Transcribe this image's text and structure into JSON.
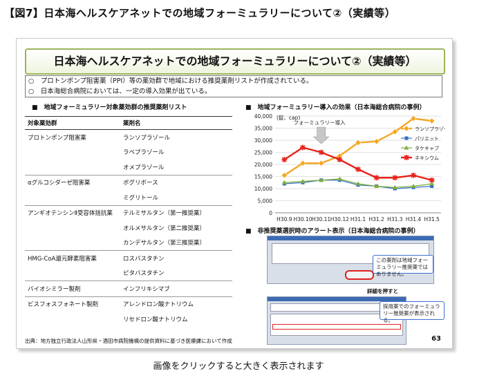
{
  "figure_title": "【図7】日本海ヘルスケアネットでの地域フォーミュラリーについて②（実績等）",
  "slide": {
    "title": "日本海ヘルスケアネットでの地域フォーミュラリーについて②（実績等）",
    "bullets": [
      "○　プロトンポンプ阻害薬（PPI）等の薬効群で地域における推奨薬剤リストが作成されている。",
      "○　日本海総合病院においては、一定の導入効果が出ている。"
    ],
    "table_heading": "■　地域フォーミュラリー対象薬効群の推奨薬剤リスト",
    "table_headers": [
      "対象薬効群",
      "薬剤名"
    ],
    "table_groups": [
      {
        "group": "プロトンポンプ阻害薬",
        "drugs": [
          "ランソプラゾール",
          "ラベプラゾール",
          "オメプラゾール"
        ]
      },
      {
        "group": "αグルコシダーゼ阻害薬",
        "drugs": [
          "ボグリボース",
          "ミグリトール"
        ]
      },
      {
        "group": "アンギオテンシンⅡ受容体拮抗薬",
        "drugs": [
          "テルミサルタン（第一推奨薬）",
          "オルメサルタン（第二推奨薬）",
          "カンデサルタン（第三推奨薬）"
        ]
      },
      {
        "group": "HMG-CoA還元酵素阻害薬",
        "drugs": [
          "ロスバスタチン",
          "ピタバスタチン"
        ]
      },
      {
        "group": "バイオシミラー製剤",
        "drugs": [
          "インフリキシマブ"
        ]
      },
      {
        "group": "ビスフォスフォネート製剤",
        "drugs": [
          "アレンドロン酸ナトリウム",
          "リセドロン酸ナトリウム"
        ]
      }
    ],
    "chart_heading": "■　地域フォーミュラリー導入の効果（日本海総合病院の事例）",
    "alert_heading": "■　非推奨薬選択時のアラート表示（日本海総合病院の事例）",
    "alert_callout_1": "この薬剤は地域フォーミュラリー推奨薬ではありません。",
    "alert_callout_2": "採用薬でのフォーミュラリー推奨薬が表示される。",
    "alert_note": "詳細を押すと",
    "source": "出典：地方独立行政法人山形県・酒田市病院機構の提供資料に基づき医療課において作成",
    "page_number": "63"
  },
  "caption": "画像をクリックすると大きく表示されます",
  "chart_data": {
    "type": "line",
    "unit_label": "(錠、cap)",
    "annotation": "フォーミュラリー導入",
    "categories": [
      "H30.9",
      "H30.10",
      "H30.11",
      "H30.12",
      "H31.1",
      "H31.2",
      "H31.3",
      "H31.4",
      "H31.5"
    ],
    "ylim": [
      0,
      40000
    ],
    "yticks": [
      "0",
      "5,000",
      "10,000",
      "15,000",
      "20,000",
      "25,000",
      "30,000",
      "35,000",
      "40,000"
    ],
    "series": [
      {
        "name": "ランソプラゾール",
        "color": "#f5a623",
        "marker": "diamond",
        "values": [
          15500,
          20500,
          20500,
          23500,
          29000,
          29500,
          33500,
          39000,
          38000
        ]
      },
      {
        "name": "パリエット",
        "color": "#2e6fc9",
        "marker": "square",
        "values": [
          12000,
          12500,
          13500,
          13500,
          11500,
          11000,
          10000,
          10500,
          11000
        ]
      },
      {
        "name": "タケキャブ",
        "color": "#7fae3a",
        "marker": "triangle",
        "values": [
          12500,
          13000,
          13500,
          14000,
          12000,
          11000,
          10500,
          11000,
          12000
        ]
      },
      {
        "name": "ネキシウム",
        "color": "#e8221a",
        "marker": "star",
        "values": [
          22000,
          27000,
          25000,
          22000,
          18000,
          14500,
          14500,
          15500,
          13500
        ]
      }
    ]
  },
  "colors": {
    "title_border": "#9ab45a",
    "callout_border": "#3a6fd0"
  }
}
